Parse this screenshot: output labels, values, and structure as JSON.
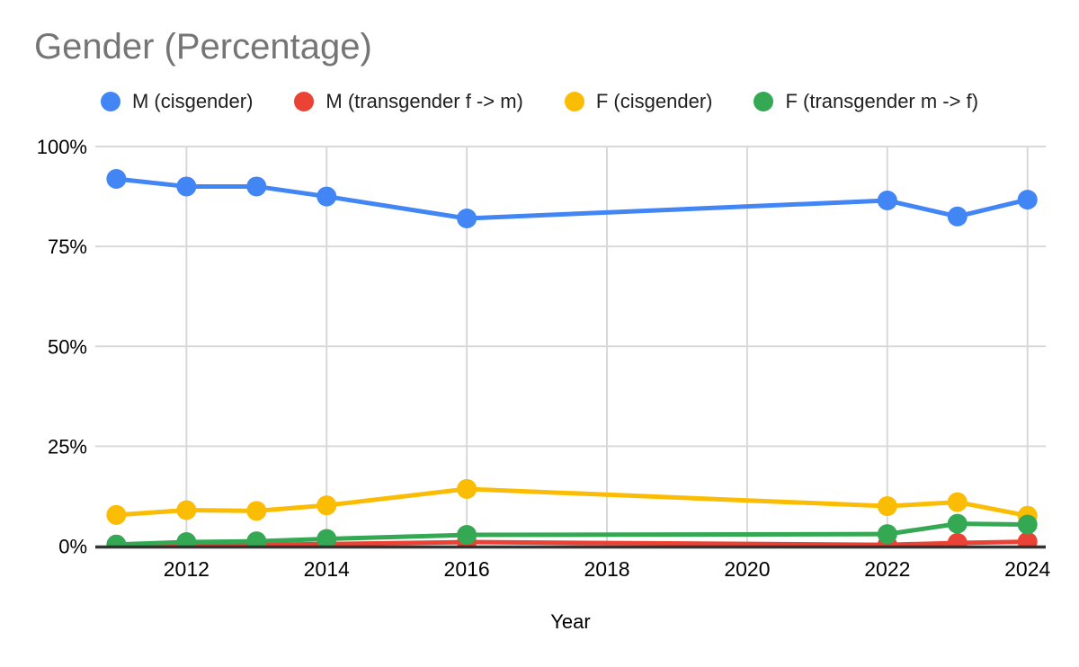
{
  "title": "Gender (Percentage)",
  "colors": {
    "background": "#ffffff",
    "title_text": "#757575",
    "tick_text": "#000000",
    "legend_text": "#212121",
    "gridline": "#d9d9d9",
    "axis_line": "#333333"
  },
  "chart_data": {
    "type": "line",
    "title": "Gender (Percentage)",
    "xlabel": "Year",
    "ylabel": "",
    "legend_position": "top",
    "grid": true,
    "x": [
      2011,
      2012,
      2013,
      2014,
      2016,
      2022,
      2023,
      2024
    ],
    "series": [
      {
        "name": "M (cisgender)",
        "color": "#4285F4",
        "values": [
          91.9,
          90.0,
          90.0,
          87.5,
          82.0,
          86.5,
          82.5,
          86.7
        ]
      },
      {
        "name": "M (transgender f -> m)",
        "color": "#EA4335",
        "values": [
          0.0,
          0.1,
          0.3,
          0.5,
          1.0,
          0.3,
          0.8,
          1.1
        ]
      },
      {
        "name": "F (cisgender)",
        "color": "#FBBC04",
        "values": [
          7.8,
          9.0,
          8.8,
          10.2,
          14.3,
          10.0,
          11.0,
          7.6
        ]
      },
      {
        "name": "F (transgender m -> f)",
        "color": "#34A853",
        "values": [
          0.4,
          1.0,
          1.2,
          1.8,
          2.8,
          3.0,
          5.6,
          5.4
        ]
      }
    ],
    "x_ticks": [
      2012,
      2014,
      2016,
      2018,
      2020,
      2022,
      2024
    ],
    "y_ticks": [
      {
        "value": 0,
        "label": "0%"
      },
      {
        "value": 25,
        "label": "25%"
      },
      {
        "value": 50,
        "label": "50%"
      },
      {
        "value": 75,
        "label": "75%"
      },
      {
        "value": 100,
        "label": "100%"
      }
    ],
    "x_range": [
      2010.7,
      2024.26
    ],
    "ylim": [
      0,
      100
    ]
  }
}
